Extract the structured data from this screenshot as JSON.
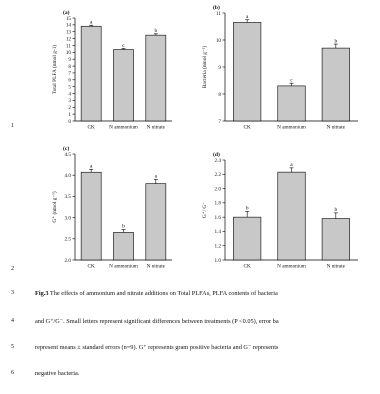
{
  "line_numbers": [
    "1",
    "2",
    "3",
    "4",
    "5",
    "6"
  ],
  "caption": {
    "lines": [
      {
        "bold": "Fig.3",
        "text": " The effects of ammonium and nitrate additions on Total PLFAs, PLFA contents of bacteria"
      },
      {
        "bold": "",
        "text": "and G⁺/G⁻. Small letters represent significant differences between treatments (P <0.05), error ba"
      },
      {
        "bold": "",
        "text": "represent means ± standard errors (n=9). G⁺ represents gram positive bacteria and G⁻ represents"
      },
      {
        "bold": "",
        "text": "negative bacteria."
      }
    ]
  },
  "chart_data": [
    {
      "type": "bar",
      "panel_label": "(a)",
      "ylabel": "Total PLFA (nmol g-1)",
      "categories": [
        "CK",
        "N ammonium",
        "N nitrate"
      ],
      "values": [
        13.8,
        10.4,
        12.5
      ],
      "errors": [
        0.15,
        0.15,
        0.2
      ],
      "letters": [
        "a",
        "c",
        "b"
      ],
      "ylim": [
        0,
        15
      ],
      "yticks": [
        0,
        1,
        2,
        3,
        4,
        5,
        6,
        7,
        8,
        9,
        10,
        11,
        12,
        13,
        14,
        15
      ],
      "bar_color": "#c8c8c8"
    },
    {
      "type": "bar",
      "panel_label": "(b)",
      "ylabel": "Bacteria (nmol g⁻¹)",
      "categories": [
        "CK",
        "N ammonium",
        "N nitrate"
      ],
      "values": [
        10.65,
        8.3,
        9.7
      ],
      "errors": [
        0.1,
        0.1,
        0.15
      ],
      "letters": [
        "a",
        "c",
        "b"
      ],
      "ylim": [
        7,
        11
      ],
      "yticks": [
        7,
        8,
        9,
        10,
        11
      ],
      "bar_color": "#c8c8c8"
    },
    {
      "type": "bar",
      "panel_label": "(c)",
      "ylabel": "G⁺ (nmol g⁻¹)",
      "categories": [
        "CK",
        "N ammonium",
        "N nitrate"
      ],
      "values": [
        4.07,
        2.65,
        3.8
      ],
      "errors": [
        0.07,
        0.07,
        0.1
      ],
      "letters": [
        "a",
        "b",
        "a"
      ],
      "ylim": [
        2.0,
        4.5
      ],
      "yticks": [
        2.0,
        2.5,
        3.0,
        3.5,
        4.0,
        4.5
      ],
      "ytick_labels": [
        "2.0",
        "2.5",
        "3.0",
        "3.5",
        "4.0",
        "4.5"
      ],
      "bar_color": "#c8c8c8"
    },
    {
      "type": "bar",
      "panel_label": "(d)",
      "ylabel": "G⁺/ G⁻",
      "categories": [
        "CK",
        "N ammonium",
        "N nitrate"
      ],
      "values": [
        1.6,
        2.23,
        1.58
      ],
      "errors": [
        0.08,
        0.06,
        0.08
      ],
      "letters": [
        "b",
        "a",
        "b"
      ],
      "ylim": [
        1.0,
        2.4
      ],
      "yticks": [
        1.0,
        1.2,
        1.4,
        1.6,
        1.8,
        2.0,
        2.2,
        2.4
      ],
      "ytick_labels": [
        "1.0",
        "1.2",
        "1.4",
        "1.6",
        "1.8",
        "2.0",
        "2.2",
        "2.4"
      ],
      "bar_color": "#c8c8c8"
    }
  ]
}
